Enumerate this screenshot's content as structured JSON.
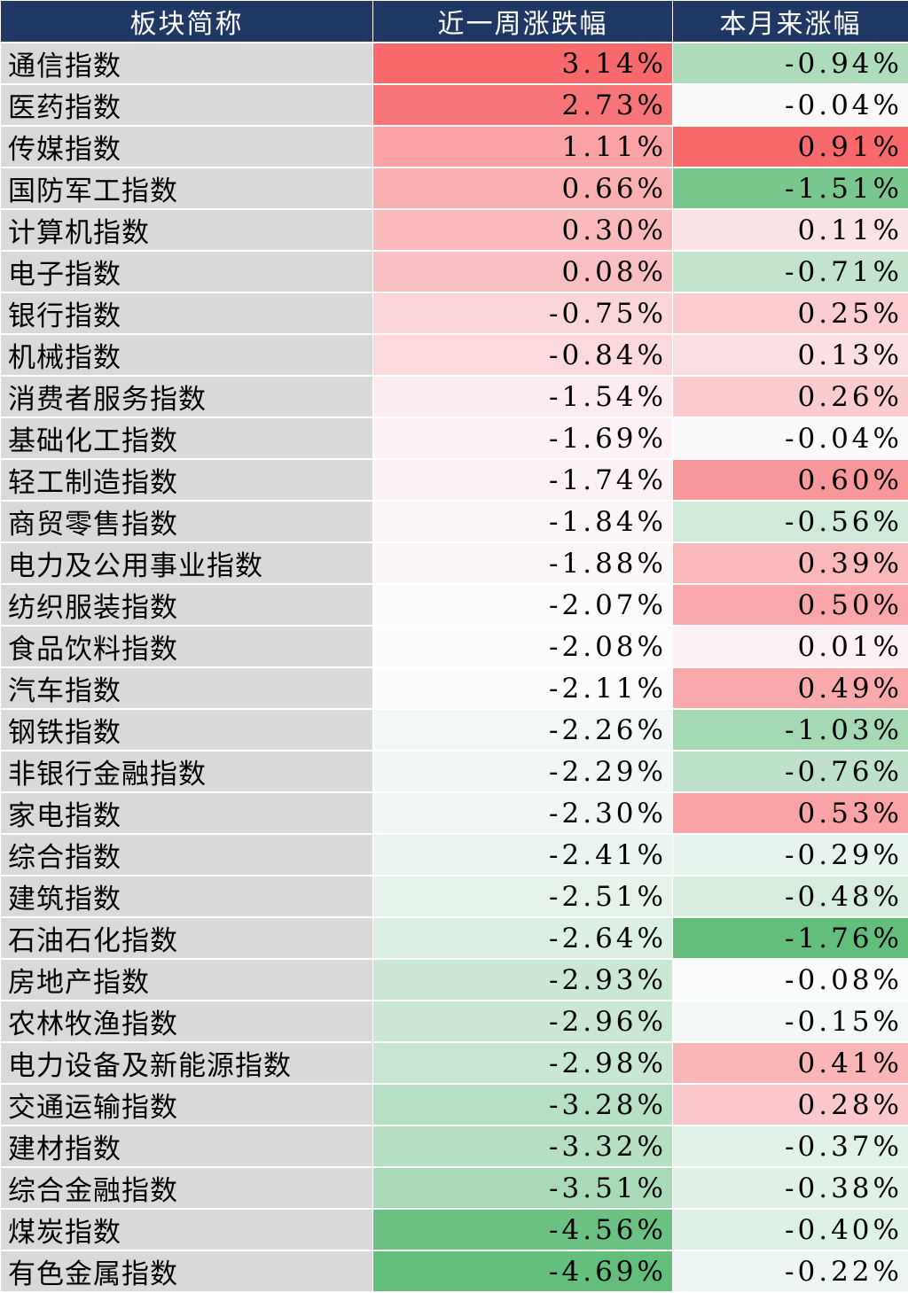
{
  "chart_data": {
    "type": "table",
    "columns": [
      "板块简称",
      "近一周涨跌幅",
      "本月来涨幅"
    ],
    "rows": [
      {
        "name": "通信指数",
        "week": 3.14,
        "month": -0.94
      },
      {
        "name": "医药指数",
        "week": 2.73,
        "month": -0.04
      },
      {
        "name": "传媒指数",
        "week": 1.11,
        "month": 0.91
      },
      {
        "name": "国防军工指数",
        "week": 0.66,
        "month": -1.51
      },
      {
        "name": "计算机指数",
        "week": 0.3,
        "month": 0.11
      },
      {
        "name": "电子指数",
        "week": 0.08,
        "month": -0.71
      },
      {
        "name": "银行指数",
        "week": -0.75,
        "month": 0.25
      },
      {
        "name": "机械指数",
        "week": -0.84,
        "month": 0.13
      },
      {
        "name": "消费者服务指数",
        "week": -1.54,
        "month": 0.26
      },
      {
        "name": "基础化工指数",
        "week": -1.69,
        "month": -0.04
      },
      {
        "name": "轻工制造指数",
        "week": -1.74,
        "month": 0.6
      },
      {
        "name": "商贸零售指数",
        "week": -1.84,
        "month": -0.56
      },
      {
        "name": "电力及公用事业指数",
        "week": -1.88,
        "month": 0.39
      },
      {
        "name": "纺织服装指数",
        "week": -2.07,
        "month": 0.5
      },
      {
        "name": "食品饮料指数",
        "week": -2.08,
        "month": 0.01
      },
      {
        "name": "汽车指数",
        "week": -2.11,
        "month": 0.49
      },
      {
        "name": "钢铁指数",
        "week": -2.26,
        "month": -1.03
      },
      {
        "name": "非银行金融指数",
        "week": -2.29,
        "month": -0.76
      },
      {
        "name": "家电指数",
        "week": -2.3,
        "month": 0.53
      },
      {
        "name": "综合指数",
        "week": -2.41,
        "month": -0.29
      },
      {
        "name": "建筑指数",
        "week": -2.51,
        "month": -0.48
      },
      {
        "name": "石油石化指数",
        "week": -2.64,
        "month": -1.76
      },
      {
        "name": "房地产指数",
        "week": -2.93,
        "month": -0.08
      },
      {
        "name": "农林牧渔指数",
        "week": -2.96,
        "month": -0.15
      },
      {
        "name": "电力设备及新能源指数",
        "week": -2.98,
        "month": 0.41
      },
      {
        "name": "交通运输指数",
        "week": -3.28,
        "month": 0.28
      },
      {
        "name": "建材指数",
        "week": -3.32,
        "month": -0.37
      },
      {
        "name": "综合金融指数",
        "week": -3.51,
        "month": -0.38
      },
      {
        "name": "煤炭指数",
        "week": -4.56,
        "month": -0.4
      },
      {
        "name": "有色金属指数",
        "week": -4.69,
        "month": -0.22
      }
    ]
  },
  "colors": {
    "header_bg": "#1f3864",
    "header_text": "#ffffff",
    "name_bg": "#d9d9d9",
    "positive_max": "#f8696b",
    "neutral": "#fcfcff",
    "negative_max": "#63be7b"
  }
}
